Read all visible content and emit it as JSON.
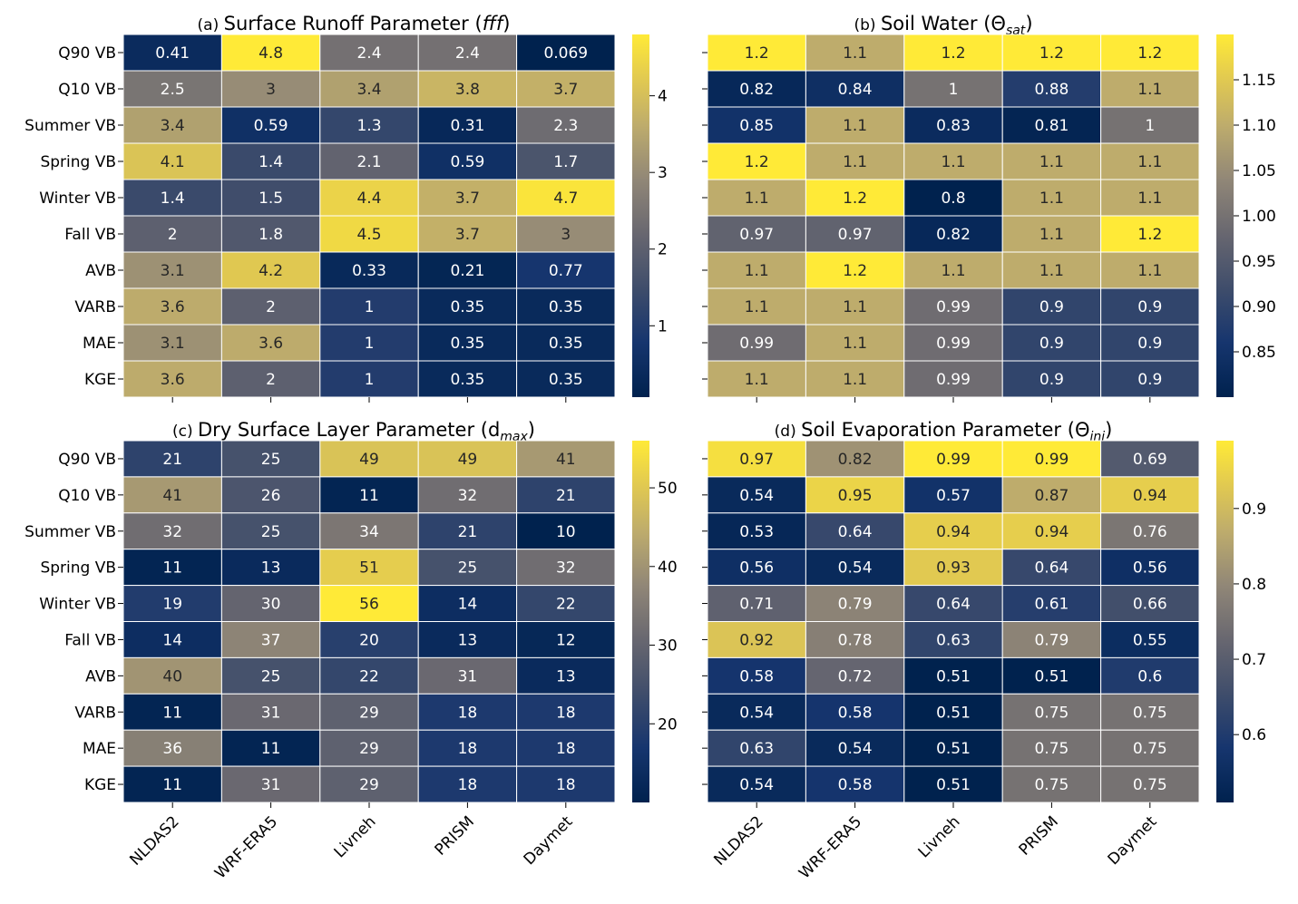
{
  "chart_data": [
    {
      "type": "heatmap",
      "panel": "(a)",
      "title_main": "Surface Runoff Parameter (",
      "title_sym": "fff",
      "title_sub": "",
      "title_end": ")",
      "rows": [
        "Q90 VB",
        "Q10 VB",
        "Summer VB",
        "Spring VB",
        "Winter VB",
        "Fall VB",
        "AVB",
        "VARB",
        "MAE",
        "KGE"
      ],
      "columns": [
        "NLDAS2",
        "WRF-ERA5",
        "Livneh",
        "PRISM",
        "Daymet"
      ],
      "values": [
        [
          0.41,
          4.8,
          2.4,
          2.4,
          0.069
        ],
        [
          2.5,
          3,
          3.4,
          3.8,
          3.7
        ],
        [
          3.4,
          0.59,
          1.3,
          0.31,
          2.3
        ],
        [
          4.1,
          1.4,
          2.1,
          0.59,
          1.7
        ],
        [
          1.4,
          1.5,
          4.4,
          3.7,
          4.7
        ],
        [
          2,
          1.8,
          4.5,
          3.7,
          3
        ],
        [
          3.1,
          4.2,
          0.33,
          0.21,
          0.77
        ],
        [
          3.6,
          2,
          1,
          0.35,
          0.35
        ],
        [
          3.1,
          3.6,
          1,
          0.35,
          0.35
        ],
        [
          3.6,
          2,
          1,
          0.35,
          0.35
        ]
      ],
      "colorbar": {
        "min": 0.069,
        "max": 4.8,
        "ticks": [
          1,
          2,
          3,
          4
        ],
        "tick_labels": [
          "1",
          "2",
          "3",
          "4"
        ]
      }
    },
    {
      "type": "heatmap",
      "panel": "(b)",
      "title_main": "Soil Water (",
      "title_sym": "Θ",
      "title_sub": "sat",
      "title_end": ")",
      "rows": [
        "Q90 VB",
        "Q10 VB",
        "Summer VB",
        "Spring VB",
        "Winter VB",
        "Fall VB",
        "AVB",
        "VARB",
        "MAE",
        "KGE"
      ],
      "columns": [
        "NLDAS2",
        "WRF-ERA5",
        "Livneh",
        "PRISM",
        "Daymet"
      ],
      "values": [
        [
          1.2,
          1.1,
          1.2,
          1.2,
          1.2
        ],
        [
          0.82,
          0.84,
          1,
          0.88,
          1.1
        ],
        [
          0.85,
          1.1,
          0.83,
          0.81,
          1
        ],
        [
          1.2,
          1.1,
          1.1,
          1.1,
          1.1
        ],
        [
          1.1,
          1.2,
          0.8,
          1.1,
          1.1
        ],
        [
          0.97,
          0.97,
          0.82,
          1.1,
          1.2
        ],
        [
          1.1,
          1.2,
          1.1,
          1.1,
          1.1
        ],
        [
          1.1,
          1.1,
          0.99,
          0.9,
          0.9
        ],
        [
          0.99,
          1.1,
          0.99,
          0.9,
          0.9
        ],
        [
          1.1,
          1.1,
          0.99,
          0.9,
          0.9
        ]
      ],
      "colorbar": {
        "min": 0.8,
        "max": 1.2,
        "ticks": [
          0.85,
          0.9,
          0.95,
          1.0,
          1.05,
          1.1,
          1.15
        ],
        "tick_labels": [
          "0.85",
          "0.90",
          "0.95",
          "1.00",
          "1.05",
          "1.10",
          "1.15"
        ]
      }
    },
    {
      "type": "heatmap",
      "panel": "(c)",
      "title_main": "Dry Surface Layer Parameter (d",
      "title_sym": "",
      "title_sub": "max",
      "title_end": ")",
      "rows": [
        "Q90 VB",
        "Q10 VB",
        "Summer VB",
        "Spring VB",
        "Winter VB",
        "Fall VB",
        "AVB",
        "VARB",
        "MAE",
        "KGE"
      ],
      "columns": [
        "NLDAS2",
        "WRF-ERA5",
        "Livneh",
        "PRISM",
        "Daymet"
      ],
      "values": [
        [
          21,
          25,
          49,
          49,
          41
        ],
        [
          41,
          26,
          11,
          32,
          21
        ],
        [
          32,
          25,
          34,
          21,
          10
        ],
        [
          11,
          13,
          51,
          25,
          32
        ],
        [
          19,
          30,
          56,
          14,
          22
        ],
        [
          14,
          37,
          20,
          13,
          12
        ],
        [
          40,
          25,
          22,
          31,
          13
        ],
        [
          11,
          31,
          29,
          18,
          18
        ],
        [
          36,
          11,
          29,
          18,
          18
        ],
        [
          11,
          31,
          29,
          18,
          18
        ]
      ],
      "colorbar": {
        "min": 10,
        "max": 56,
        "ticks": [
          20,
          30,
          40,
          50
        ],
        "tick_labels": [
          "20",
          "30",
          "40",
          "50"
        ]
      }
    },
    {
      "type": "heatmap",
      "panel": "(d)",
      "title_main": "Soil Evaporation Parameter (",
      "title_sym": "Θ",
      "title_sub": "ini",
      "title_end": ")",
      "rows": [
        "Q90 VB",
        "Q10 VB",
        "Summer VB",
        "Spring VB",
        "Winter VB",
        "Fall VB",
        "AVB",
        "VARB",
        "MAE",
        "KGE"
      ],
      "columns": [
        "NLDAS2",
        "WRF-ERA5",
        "Livneh",
        "PRISM",
        "Daymet"
      ],
      "values": [
        [
          0.97,
          0.82,
          0.99,
          0.99,
          0.69
        ],
        [
          0.54,
          0.95,
          0.57,
          0.87,
          0.94
        ],
        [
          0.53,
          0.64,
          0.94,
          0.94,
          0.76
        ],
        [
          0.56,
          0.54,
          0.93,
          0.64,
          0.56
        ],
        [
          0.71,
          0.79,
          0.64,
          0.61,
          0.66
        ],
        [
          0.92,
          0.78,
          0.63,
          0.79,
          0.55
        ],
        [
          0.58,
          0.72,
          0.51,
          0.51,
          0.6
        ],
        [
          0.54,
          0.58,
          0.51,
          0.75,
          0.75
        ],
        [
          0.63,
          0.54,
          0.51,
          0.75,
          0.75
        ],
        [
          0.54,
          0.58,
          0.51,
          0.75,
          0.75
        ]
      ],
      "colorbar": {
        "min": 0.51,
        "max": 0.99,
        "ticks": [
          0.6,
          0.7,
          0.8,
          0.9
        ],
        "tick_labels": [
          "0.6",
          "0.7",
          "0.8",
          "0.9"
        ]
      }
    }
  ],
  "colormap": "cividis"
}
